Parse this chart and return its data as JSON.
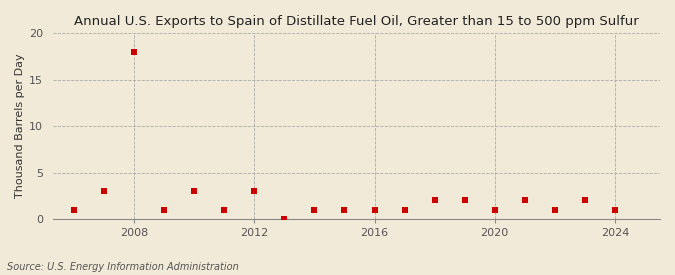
{
  "title": "Annual U.S. Exports to Spain of Distillate Fuel Oil, Greater than 15 to 500 ppm Sulfur",
  "ylabel": "Thousand Barrels per Day",
  "source": "Source: U.S. Energy Information Administration",
  "background_color": "#f2ead8",
  "plot_background_color": "#f2ead8",
  "years": [
    2006,
    2007,
    2008,
    2009,
    2010,
    2011,
    2012,
    2013,
    2014,
    2015,
    2016,
    2017,
    2018,
    2019,
    2020,
    2021,
    2022,
    2023,
    2024
  ],
  "values": [
    1,
    3,
    18,
    1,
    3,
    1,
    3,
    0,
    1,
    1,
    1,
    1,
    2,
    2,
    1,
    2,
    1,
    2,
    1
  ],
  "marker_color": "#cc0000",
  "marker_size": 15,
  "ylim": [
    0,
    20
  ],
  "yticks": [
    0,
    5,
    10,
    15,
    20
  ],
  "xticks": [
    2008,
    2012,
    2016,
    2020,
    2024
  ],
  "xlim": [
    2005.3,
    2025.5
  ],
  "title_fontsize": 9.5,
  "label_fontsize": 8,
  "tick_fontsize": 8,
  "source_fontsize": 7
}
